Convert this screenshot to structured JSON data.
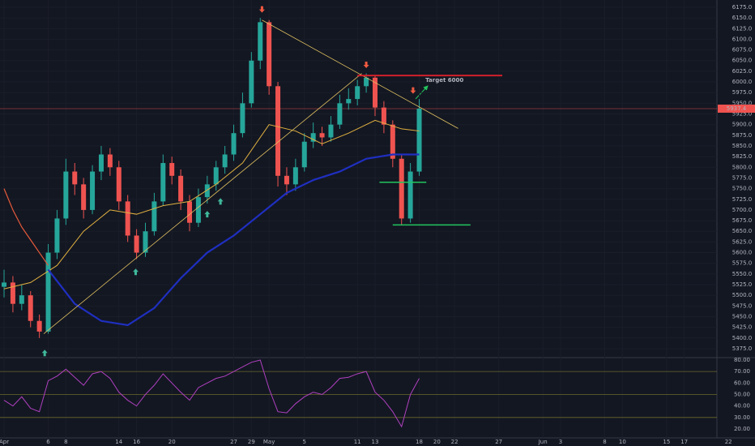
{
  "chart_data": [
    {
      "type": "candlestick",
      "xlim": [
        -0.46,
        80.7
      ],
      "ylim": [
        5354,
        6192
      ],
      "up_color": "#26a69a",
      "down_color": "#ef5350",
      "candles": {
        "x": [
          0,
          1,
          2,
          3,
          4,
          5,
          6,
          7,
          8,
          9,
          10,
          11,
          12,
          13,
          14,
          15,
          16,
          17,
          18,
          19,
          20,
          21,
          22,
          23,
          24,
          25,
          26,
          27,
          28,
          29,
          30,
          31,
          32,
          33,
          34,
          35,
          36,
          37,
          38,
          39,
          40,
          41,
          42,
          43,
          44,
          45,
          46,
          47
        ],
        "open": [
          5520,
          5530,
          5480,
          5500,
          5440,
          5415,
          5600,
          5680,
          5790,
          5760,
          5700,
          5790,
          5830,
          5800,
          5720,
          5640,
          5600,
          5650,
          5720,
          5810,
          5780,
          5720,
          5670,
          5730,
          5760,
          5800,
          5830,
          5880,
          5950,
          6050,
          6140,
          5990,
          5780,
          5760,
          5800,
          5860,
          5880,
          5870,
          5900,
          5950,
          5960,
          5990,
          6010,
          5940,
          5900,
          5820,
          5680,
          5790
        ],
        "high": [
          5560,
          5545,
          5525,
          5510,
          5455,
          5620,
          5700,
          5820,
          5810,
          5775,
          5805,
          5850,
          5845,
          5815,
          5735,
          5655,
          5670,
          5740,
          5830,
          5825,
          5795,
          5735,
          5750,
          5780,
          5815,
          5850,
          5900,
          5975,
          6070,
          6150,
          6145,
          6000,
          5800,
          5820,
          5880,
          5905,
          5895,
          5920,
          5970,
          5985,
          6005,
          6020,
          6015,
          5955,
          5910,
          5830,
          5810,
          5960
        ],
        "low": [
          5495,
          5460,
          5465,
          5425,
          5400,
          5410,
          5585,
          5665,
          5735,
          5680,
          5690,
          5770,
          5780,
          5700,
          5625,
          5585,
          5590,
          5640,
          5710,
          5760,
          5700,
          5650,
          5660,
          5715,
          5745,
          5785,
          5815,
          5870,
          5940,
          6030,
          5970,
          5755,
          5735,
          5745,
          5790,
          5845,
          5850,
          5860,
          5890,
          5935,
          5945,
          5975,
          5920,
          5880,
          5800,
          5665,
          5670,
          5780
        ],
        "close": [
          5530,
          5480,
          5500,
          5440,
          5415,
          5600,
          5680,
          5790,
          5760,
          5700,
          5790,
          5830,
          5800,
          5720,
          5640,
          5600,
          5650,
          5720,
          5810,
          5780,
          5720,
          5670,
          5730,
          5760,
          5800,
          5830,
          5880,
          5950,
          6050,
          6140,
          5990,
          5780,
          5760,
          5800,
          5860,
          5880,
          5870,
          5900,
          5950,
          5960,
          5990,
          6010,
          5940,
          5900,
          5820,
          5680,
          5790,
          5937.4
        ]
      },
      "ma": [
        {
          "color": "#e0b040",
          "width": 1,
          "x": [
            0,
            3,
            6,
            9,
            12,
            15,
            18,
            21,
            24,
            27,
            30,
            33,
            36,
            39,
            42,
            45,
            47
          ],
          "values": [
            5515,
            5530,
            5570,
            5650,
            5700,
            5690,
            5710,
            5720,
            5760,
            5810,
            5900,
            5885,
            5855,
            5880,
            5910,
            5890,
            5885
          ]
        },
        {
          "color": "#1f2fc0",
          "width": 2.2,
          "x": [
            5,
            8,
            11,
            14,
            17,
            20,
            23,
            26,
            29,
            32,
            35,
            38,
            41,
            44,
            47
          ],
          "values": [
            5560,
            5480,
            5440,
            5430,
            5470,
            5540,
            5600,
            5640,
            5690,
            5740,
            5770,
            5790,
            5820,
            5830,
            5830
          ]
        },
        {
          "color": "#e65a3a",
          "width": 1.2,
          "x": [
            0,
            1,
            2,
            3,
            4,
            5
          ],
          "values": [
            5750,
            5700,
            5660,
            5630,
            5600,
            5570
          ]
        }
      ],
      "trendlines": [
        {
          "color": "#e0c060",
          "x": [
            29.2,
            51.4
          ],
          "y": [
            6145,
            5891
          ]
        },
        {
          "color": "#e0c060",
          "x": [
            4.5,
            40.5
          ],
          "y": [
            5410,
            6020
          ]
        },
        {
          "color": "#d0202a",
          "x": [
            40,
            56.4
          ],
          "y": [
            6015,
            6015
          ]
        },
        {
          "color": "#22c55e",
          "x": [
            42.5,
            47.8
          ],
          "y": [
            5765,
            5765
          ]
        },
        {
          "color": "#22c55e",
          "x": [
            44,
            52.8
          ],
          "y": [
            5665,
            5665
          ]
        }
      ],
      "arrows": [
        {
          "x": 29.2,
          "y": 6170,
          "direction": "down",
          "color": "#f05a40"
        },
        {
          "x": 41,
          "y": 6040,
          "direction": "down",
          "color": "#f05a40"
        },
        {
          "x": 46.3,
          "y": 5980,
          "direction": "down",
          "color": "#f05a40"
        },
        {
          "x": 4.6,
          "y": 5365,
          "direction": "up",
          "color": "#3fb89a"
        },
        {
          "x": 14.9,
          "y": 5555,
          "direction": "up",
          "color": "#3fb89a"
        },
        {
          "x": 23,
          "y": 5690,
          "direction": "up",
          "color": "#3fb89a"
        },
        {
          "x": 24.5,
          "y": 5720,
          "direction": "up",
          "color": "#3fb89a"
        }
      ],
      "annotation": {
        "text": "Target 6000",
        "x": 47.7,
        "y": 6004
      },
      "last_price": 5937.4,
      "yticks": [
        {
          "value": 5375,
          "label": "5375.0"
        },
        {
          "value": 5400,
          "label": "5400.0"
        },
        {
          "value": 5425,
          "label": "5425.0"
        },
        {
          "value": 5450,
          "label": "5450.0"
        },
        {
          "value": 5475,
          "label": "5475.0"
        },
        {
          "value": 5500,
          "label": "5500.0"
        },
        {
          "value": 5525,
          "label": "5525.0"
        },
        {
          "value": 5550,
          "label": "5550.0"
        },
        {
          "value": 5575,
          "label": "5575.0"
        },
        {
          "value": 5600,
          "label": "5600.0"
        },
        {
          "value": 5625,
          "label": "5625.0"
        },
        {
          "value": 5650,
          "label": "5650.0"
        },
        {
          "value": 5675,
          "label": "5675.0"
        },
        {
          "value": 5700,
          "label": "5700.0"
        },
        {
          "value": 5725,
          "label": "5725.0"
        },
        {
          "value": 5750,
          "label": "5750.0"
        },
        {
          "value": 5775,
          "label": "5775.0"
        },
        {
          "value": 5800,
          "label": "5800.0"
        },
        {
          "value": 5825,
          "label": "5825.0"
        },
        {
          "value": 5850,
          "label": "5850.0"
        },
        {
          "value": 5875,
          "label": "5875.0"
        },
        {
          "value": 5900,
          "label": "5900.0"
        },
        {
          "value": 5925,
          "label": "5925.0"
        },
        {
          "value": 5950,
          "label": "5950.0"
        },
        {
          "value": 5975,
          "label": "5975.0"
        },
        {
          "value": 6000,
          "label": "6000.0"
        },
        {
          "value": 6025,
          "label": "6025.0"
        },
        {
          "value": 6050,
          "label": "6050.0"
        },
        {
          "value": 6075,
          "label": "6075.0"
        },
        {
          "value": 6100,
          "label": "6100.0"
        },
        {
          "value": 6125,
          "label": "6125.0"
        },
        {
          "value": 6150,
          "label": "6150.0"
        },
        {
          "value": 6175,
          "label": "6175.0"
        }
      ],
      "xticks": [
        {
          "value": 0,
          "label": "Apr"
        },
        {
          "value": 5,
          "label": "6"
        },
        {
          "value": 7,
          "label": "8"
        },
        {
          "value": 13,
          "label": "14"
        },
        {
          "value": 15,
          "label": "16"
        },
        {
          "value": 19,
          "label": "20"
        },
        {
          "value": 26,
          "label": "27"
        },
        {
          "value": 28,
          "label": "29"
        },
        {
          "value": 30,
          "label": "May"
        },
        {
          "value": 34,
          "label": "5"
        },
        {
          "value": 40,
          "label": "11"
        },
        {
          "value": 42,
          "label": "13"
        },
        {
          "value": 47,
          "label": "18"
        },
        {
          "value": 49,
          "label": "20"
        },
        {
          "value": 51,
          "label": "22"
        },
        {
          "value": 56,
          "label": "27"
        },
        {
          "value": 61,
          "label": "Jun"
        },
        {
          "value": 63,
          "label": "3"
        },
        {
          "value": 68,
          "label": "8"
        },
        {
          "value": 70,
          "label": "10"
        },
        {
          "value": 75,
          "label": "15"
        },
        {
          "value": 77,
          "label": "17"
        },
        {
          "value": 82,
          "label": "22"
        }
      ]
    },
    {
      "type": "line",
      "color": "#b040c0",
      "ylim": [
        12.2,
        82.1
      ],
      "levels": [
        70,
        50,
        30
      ],
      "x": [
        0,
        1,
        2,
        3,
        4,
        5,
        6,
        7,
        8,
        9,
        10,
        11,
        12,
        13,
        14,
        15,
        16,
        17,
        18,
        19,
        20,
        21,
        22,
        23,
        24,
        25,
        26,
        27,
        28,
        29,
        30,
        31,
        32,
        33,
        34,
        35,
        36,
        37,
        38,
        39,
        40,
        41,
        42,
        43,
        44,
        45,
        46,
        47
      ],
      "values": [
        45,
        40,
        48,
        38,
        35,
        62,
        66,
        72,
        65,
        58,
        68,
        70,
        64,
        52,
        45,
        40,
        50,
        58,
        68,
        60,
        52,
        45,
        56,
        60,
        64,
        66,
        70,
        74,
        78,
        80,
        55,
        35,
        34,
        42,
        48,
        52,
        50,
        56,
        64,
        65,
        68,
        70,
        52,
        45,
        35,
        22,
        50,
        64
      ],
      "yticks": [
        {
          "value": 20,
          "label": "20.00"
        },
        {
          "value": 30,
          "label": "30.00"
        },
        {
          "value": 40,
          "label": "40.00"
        },
        {
          "value": 50,
          "label": "50.00"
        },
        {
          "value": 60,
          "label": "60.00"
        },
        {
          "value": 70,
          "label": "70.00"
        },
        {
          "value": 80,
          "label": "80.00"
        }
      ]
    }
  ]
}
